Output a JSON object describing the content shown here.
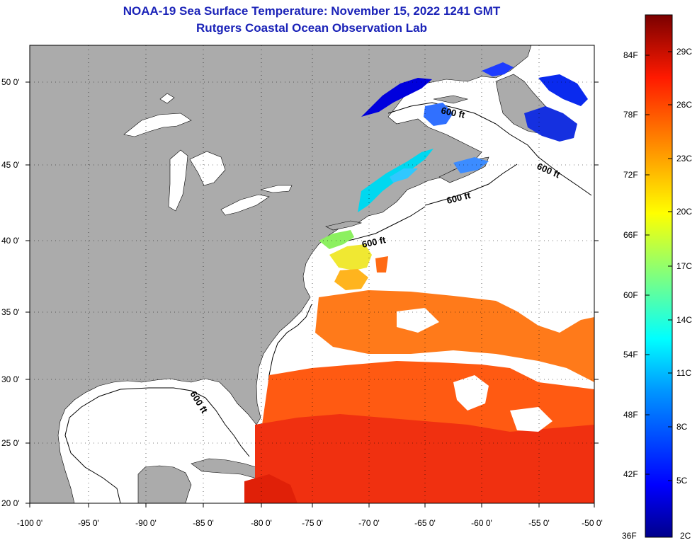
{
  "header": {
    "title": "NOAA-19 Sea Surface Temperature:  November 15, 2022 1241 GMT",
    "subtitle": "Rutgers Coastal Ocean Observation Lab"
  },
  "axes": {
    "lon_labels": [
      "-100 0'",
      "-95 0'",
      "-90 0'",
      "-85 0'",
      "-80 0'",
      "-75 0'",
      "-70 0'",
      "-65 0'",
      "-60 0'",
      "-55 0'",
      "-50 0'"
    ],
    "lat_labels": [
      "50 0'",
      "45 0'",
      "40 0'",
      "35 0'",
      "30 0'",
      "25 0'",
      "20 0'"
    ]
  },
  "contours": {
    "labels": [
      "600 ft",
      "600 ft",
      "600 ft",
      "600 ft",
      "600 ft"
    ]
  },
  "colorbar": {
    "f_labels": [
      "84F",
      "78F",
      "72F",
      "66F",
      "60F",
      "54F",
      "48F",
      "42F",
      "36F"
    ],
    "c_labels": [
      "29C",
      "26C",
      "23C",
      "20C",
      "17C",
      "14C",
      "11C",
      "8C",
      "5C",
      "2C"
    ],
    "colors": {
      "top": "#7a0000",
      "red": "#e80000",
      "orange": "#ff8c00",
      "yellow": "#ffff00",
      "green": "#7fff7f",
      "cyan": "#00ffff",
      "blue": "#0050ff",
      "bottom": "#00008b"
    }
  },
  "colors": {
    "land": "#ababab",
    "water_no_data": "#ffffff",
    "title": "#1b23b8"
  }
}
